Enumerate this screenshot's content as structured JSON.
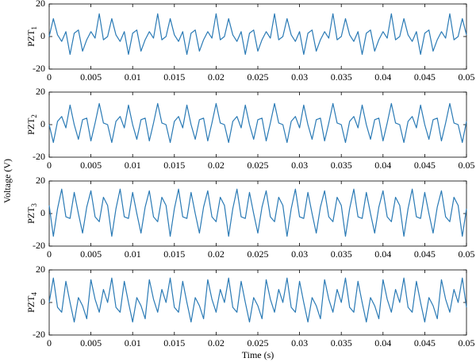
{
  "ylabel": "Voltage (V)",
  "chart_data": [
    {
      "type": "line",
      "ylabel_main": "PZT",
      "ylabel_sub": "1",
      "color": "#2a7ab5",
      "xlim": [
        0,
        0.05
      ],
      "xticks": [
        0,
        0.005,
        0.01,
        0.015,
        0.02,
        0.025,
        0.03,
        0.035,
        0.04,
        0.045,
        0.05
      ],
      "ylim": [
        -20,
        20
      ],
      "yticks": [
        -20,
        0,
        20
      ],
      "x": [
        0,
        0.0005,
        0.001,
        0.0015,
        0.002,
        0.0025,
        0.003,
        0.0035,
        0.004,
        0.0045,
        0.005,
        0.0055,
        0.006,
        0.0065,
        0.007,
        0.0075,
        0.008,
        0.0085,
        0.009,
        0.0095,
        0.01,
        0.0105,
        0.011,
        0.0115,
        0.012,
        0.0125,
        0.013,
        0.0135,
        0.014,
        0.0145,
        0.015,
        0.0155,
        0.016,
        0.0165,
        0.017,
        0.0175,
        0.018,
        0.0185,
        0.019,
        0.0195,
        0.02,
        0.0205,
        0.021,
        0.0215,
        0.022,
        0.0225,
        0.023,
        0.0235,
        0.024,
        0.0245,
        0.025,
        0.0255,
        0.026,
        0.0265,
        0.027,
        0.0275,
        0.028,
        0.0285,
        0.029,
        0.0295,
        0.03,
        0.0305,
        0.031,
        0.0315,
        0.032,
        0.0325,
        0.033,
        0.0335,
        0.034,
        0.0345,
        0.035,
        0.0355,
        0.036,
        0.0365,
        0.037,
        0.0375,
        0.038,
        0.0385,
        0.039,
        0.0395,
        0.04,
        0.0405,
        0.041,
        0.0415,
        0.042,
        0.0425,
        0.043,
        0.0435,
        0.044,
        0.0445,
        0.045,
        0.0455,
        0.046,
        0.0465,
        0.047,
        0.0475,
        0.048,
        0.0485,
        0.049,
        0.0495,
        0.05
      ],
      "values": [
        0,
        11,
        1,
        -3,
        3,
        -11,
        2,
        4,
        -9,
        -2,
        3,
        -1,
        14,
        -2,
        0,
        11,
        1,
        -3,
        3,
        -11,
        2,
        4,
        -9,
        -2,
        3,
        -1,
        14,
        -2,
        0,
        11,
        1,
        -3,
        3,
        -11,
        2,
        4,
        -9,
        -2,
        3,
        -1,
        14,
        -2,
        0,
        11,
        1,
        -3,
        3,
        -11,
        2,
        4,
        -9,
        -2,
        3,
        -1,
        14,
        -2,
        0,
        11,
        1,
        -3,
        3,
        -11,
        2,
        4,
        -9,
        -2,
        3,
        -1,
        14,
        -2,
        0,
        11,
        1,
        -3,
        3,
        -11,
        2,
        4,
        -9,
        -2,
        3,
        -1,
        14,
        -2,
        0,
        11,
        1,
        -3,
        3,
        -11,
        2,
        4,
        -9,
        -2,
        3,
        -1,
        14,
        -2,
        0,
        11,
        1
      ]
    },
    {
      "type": "line",
      "ylabel_main": "PZT",
      "ylabel_sub": "2",
      "color": "#2a7ab5",
      "xlim": [
        0,
        0.05
      ],
      "xticks": [
        0,
        0.005,
        0.01,
        0.015,
        0.02,
        0.025,
        0.03,
        0.035,
        0.04,
        0.045,
        0.05
      ],
      "ylim": [
        -20,
        20
      ],
      "yticks": [
        -20,
        0,
        20
      ],
      "x": [
        0,
        0.0005,
        0.001,
        0.0015,
        0.002,
        0.0025,
        0.003,
        0.0035,
        0.004,
        0.0045,
        0.005,
        0.0055,
        0.006,
        0.0065,
        0.007,
        0.0075,
        0.008,
        0.0085,
        0.009,
        0.0095,
        0.01,
        0.0105,
        0.011,
        0.0115,
        0.012,
        0.0125,
        0.013,
        0.0135,
        0.014,
        0.0145,
        0.015,
        0.0155,
        0.016,
        0.0165,
        0.017,
        0.0175,
        0.018,
        0.0185,
        0.019,
        0.0195,
        0.02,
        0.0205,
        0.021,
        0.0215,
        0.022,
        0.0225,
        0.023,
        0.0235,
        0.024,
        0.0245,
        0.025,
        0.0255,
        0.026,
        0.0265,
        0.027,
        0.0275,
        0.028,
        0.0285,
        0.029,
        0.0295,
        0.03,
        0.0305,
        0.031,
        0.0315,
        0.032,
        0.0325,
        0.033,
        0.0335,
        0.034,
        0.0345,
        0.035,
        0.0355,
        0.036,
        0.0365,
        0.037,
        0.0375,
        0.038,
        0.0385,
        0.039,
        0.0395,
        0.04,
        0.0405,
        0.041,
        0.0415,
        0.042,
        0.0425,
        0.043,
        0.0435,
        0.044,
        0.0445,
        0.045,
        0.0455,
        0.046,
        0.0465,
        0.047,
        0.0475,
        0.048,
        0.0485,
        0.049,
        0.0495,
        0.05
      ],
      "values": [
        0,
        -11,
        2,
        5,
        -2,
        12,
        0,
        -9,
        3,
        4,
        -10,
        1,
        13,
        1,
        0,
        -11,
        2,
        5,
        -2,
        12,
        0,
        -9,
        3,
        4,
        -10,
        1,
        13,
        1,
        0,
        -11,
        2,
        5,
        -2,
        12,
        0,
        -9,
        3,
        4,
        -10,
        1,
        13,
        1,
        0,
        -11,
        2,
        5,
        -2,
        12,
        0,
        -9,
        3,
        4,
        -10,
        1,
        13,
        1,
        0,
        -11,
        2,
        5,
        -2,
        12,
        0,
        -9,
        3,
        4,
        -10,
        1,
        13,
        1,
        0,
        -11,
        2,
        5,
        -2,
        12,
        0,
        -9,
        3,
        4,
        -10,
        1,
        13,
        1,
        0,
        -11,
        2,
        5,
        -2,
        12,
        0,
        -9,
        3,
        4,
        -10,
        1,
        13,
        1,
        0,
        -11,
        2
      ]
    },
    {
      "type": "line",
      "ylabel_main": "PZT",
      "ylabel_sub": "3",
      "color": "#2a7ab5",
      "xlim": [
        0,
        0.05
      ],
      "xticks": [
        0,
        0.005,
        0.01,
        0.015,
        0.02,
        0.025,
        0.03,
        0.035,
        0.04,
        0.045,
        0.05
      ],
      "ylim": [
        -20,
        20
      ],
      "yticks": [
        -20,
        0,
        20
      ],
      "x": [
        0,
        0.0005,
        0.001,
        0.0015,
        0.002,
        0.0025,
        0.003,
        0.0035,
        0.004,
        0.0045,
        0.005,
        0.0055,
        0.006,
        0.0065,
        0.007,
        0.0075,
        0.008,
        0.0085,
        0.009,
        0.0095,
        0.01,
        0.0105,
        0.011,
        0.0115,
        0.012,
        0.0125,
        0.013,
        0.0135,
        0.014,
        0.0145,
        0.015,
        0.0155,
        0.016,
        0.0165,
        0.017,
        0.0175,
        0.018,
        0.0185,
        0.019,
        0.0195,
        0.02,
        0.0205,
        0.021,
        0.0215,
        0.022,
        0.0225,
        0.023,
        0.0235,
        0.024,
        0.0245,
        0.025,
        0.0255,
        0.026,
        0.0265,
        0.027,
        0.0275,
        0.028,
        0.0285,
        0.029,
        0.0295,
        0.03,
        0.0305,
        0.031,
        0.0315,
        0.032,
        0.0325,
        0.033,
        0.0335,
        0.034,
        0.0345,
        0.035,
        0.0355,
        0.036,
        0.0365,
        0.037,
        0.0375,
        0.038,
        0.0385,
        0.039,
        0.0395,
        0.04,
        0.0405,
        0.041,
        0.0415,
        0.042,
        0.0425,
        0.043,
        0.0435,
        0.044,
        0.0445,
        0.045,
        0.0455,
        0.046,
        0.0465,
        0.047,
        0.0475,
        0.048,
        0.0485,
        0.049,
        0.0495,
        0.05
      ],
      "values": [
        5,
        -14,
        3,
        15,
        -2,
        -3,
        13,
        0,
        -12,
        4,
        14,
        -2,
        -5,
        10,
        5,
        -14,
        3,
        15,
        -2,
        -3,
        13,
        0,
        -12,
        4,
        14,
        -2,
        -5,
        10,
        5,
        -14,
        3,
        15,
        -2,
        -3,
        13,
        0,
        -12,
        4,
        14,
        -2,
        -5,
        10,
        5,
        -14,
        3,
        15,
        -2,
        -3,
        13,
        0,
        -12,
        4,
        14,
        -2,
        -5,
        10,
        5,
        -14,
        3,
        15,
        -2,
        -3,
        13,
        0,
        -12,
        4,
        14,
        -2,
        -5,
        10,
        5,
        -14,
        3,
        15,
        -2,
        -3,
        13,
        0,
        -12,
        4,
        14,
        -2,
        -5,
        10,
        5,
        -14,
        3,
        15,
        -2,
        -3,
        13,
        0,
        -12,
        4,
        14,
        -2,
        -5,
        10,
        5,
        -14,
        3
      ]
    },
    {
      "type": "line",
      "ylabel_main": "PZT",
      "ylabel_sub": "4",
      "xlabel": "Time (s)",
      "color": "#2a7ab5",
      "xlim": [
        0,
        0.05
      ],
      "xticks": [
        0,
        0.005,
        0.01,
        0.015,
        0.02,
        0.025,
        0.03,
        0.035,
        0.04,
        0.045,
        0.05
      ],
      "ylim": [
        -20,
        20
      ],
      "yticks": [
        -20,
        0,
        20
      ],
      "x": [
        0,
        0.0005,
        0.001,
        0.0015,
        0.002,
        0.0025,
        0.003,
        0.0035,
        0.004,
        0.0045,
        0.005,
        0.0055,
        0.006,
        0.0065,
        0.007,
        0.0075,
        0.008,
        0.0085,
        0.009,
        0.0095,
        0.01,
        0.0105,
        0.011,
        0.0115,
        0.012,
        0.0125,
        0.013,
        0.0135,
        0.014,
        0.0145,
        0.015,
        0.0155,
        0.016,
        0.0165,
        0.017,
        0.0175,
        0.018,
        0.0185,
        0.019,
        0.0195,
        0.02,
        0.0205,
        0.021,
        0.0215,
        0.022,
        0.0225,
        0.023,
        0.0235,
        0.024,
        0.0245,
        0.025,
        0.0255,
        0.026,
        0.0265,
        0.027,
        0.0275,
        0.028,
        0.0285,
        0.029,
        0.0295,
        0.03,
        0.0305,
        0.031,
        0.0315,
        0.032,
        0.0325,
        0.033,
        0.0335,
        0.034,
        0.0345,
        0.035,
        0.0355,
        0.036,
        0.0365,
        0.037,
        0.0375,
        0.038,
        0.0385,
        0.039,
        0.0395,
        0.04,
        0.0405,
        0.041,
        0.0415,
        0.042,
        0.0425,
        0.043,
        0.0435,
        0.044,
        0.0445,
        0.045,
        0.0455,
        0.046,
        0.0465,
        0.047,
        0.0475,
        0.048,
        0.0485,
        0.049,
        0.0495,
        0.05
      ],
      "values": [
        0,
        15,
        -3,
        -6,
        13,
        0,
        -12,
        3,
        -2,
        -10,
        14,
        2,
        -6,
        8,
        0,
        15,
        -3,
        -6,
        13,
        0,
        -12,
        3,
        -2,
        -10,
        14,
        2,
        -6,
        8,
        0,
        15,
        -3,
        -6,
        13,
        0,
        -12,
        3,
        -2,
        -10,
        14,
        2,
        -6,
        8,
        0,
        15,
        -3,
        -6,
        13,
        0,
        -12,
        3,
        -2,
        -10,
        14,
        2,
        -6,
        8,
        0,
        15,
        -3,
        -6,
        13,
        0,
        -12,
        3,
        -2,
        -10,
        14,
        2,
        -6,
        8,
        0,
        15,
        -3,
        -6,
        13,
        0,
        -12,
        3,
        -2,
        -10,
        14,
        2,
        -6,
        8,
        0,
        15,
        -3,
        -6,
        13,
        0,
        -12,
        3,
        -2,
        -10,
        14,
        2,
        -6,
        8,
        0,
        15,
        -3
      ]
    }
  ]
}
